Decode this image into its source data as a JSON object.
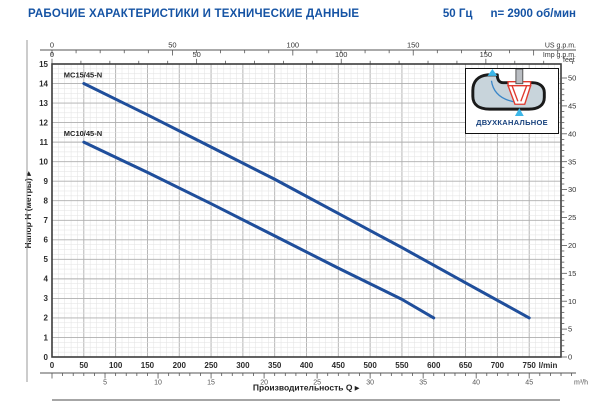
{
  "header": {
    "title": "РАБОЧИЕ ХАРАКТЕРИСТИКИ И ТЕХНИЧЕСКИЕ ДАННЫЕ",
    "frequency": "50 Гц",
    "speed": "n= 2900 об/мин"
  },
  "inset": {
    "label": "ДВУХКАНАЛЬНОЕ"
  },
  "colors": {
    "accent_blue": "#1553a4",
    "curve_blue": "#1f4e9b",
    "grid_minor": "#e2e2e2",
    "grid_major": "#aeaeae",
    "inset_fill": "#c8d4db",
    "impeller_red": "#e03a2f",
    "arrow_cyan": "#3db7e8"
  },
  "chart_data": {
    "type": "line",
    "title": "",
    "xlabel": "Производительность Q  ▸",
    "ylabel": "Напор H (метры)  ▸",
    "x_unit": "l/min",
    "xlim": [
      0,
      800
    ],
    "ylim": [
      0,
      15
    ],
    "x_major_step": 50,
    "x_minor_step": 10,
    "y_major_step": 1,
    "y_minor_step": 0.25,
    "y_tick_labels": [
      0,
      1,
      2,
      3,
      4,
      5,
      6,
      7,
      8,
      9,
      10,
      11,
      12,
      13,
      14,
      15
    ],
    "x_tick_labels": [
      0,
      50,
      100,
      150,
      200,
      250,
      300,
      350,
      400,
      450,
      500,
      550,
      600,
      650,
      700,
      750
    ],
    "grid": true,
    "curve_color": "#1f4e9b",
    "series": [
      {
        "name": "MC15/45-N",
        "points": [
          [
            50,
            14
          ],
          [
            150,
            12.4
          ],
          [
            250,
            10.75
          ],
          [
            350,
            9.1
          ],
          [
            450,
            7.35
          ],
          [
            550,
            5.6
          ],
          [
            650,
            3.8
          ],
          [
            750,
            2.0
          ]
        ]
      },
      {
        "name": "MC10/45-N",
        "points": [
          [
            50,
            11
          ],
          [
            150,
            9.45
          ],
          [
            250,
            7.85
          ],
          [
            350,
            6.2
          ],
          [
            450,
            4.55
          ],
          [
            550,
            2.95
          ],
          [
            600,
            2.0
          ]
        ]
      }
    ],
    "secondary_axes": [
      {
        "label": "US g.p.m.",
        "position": "top",
        "ticks": [
          0,
          50,
          100,
          150
        ],
        "major_step": 50,
        "minor_step": 10,
        "lpm_per_unit": 3.785
      },
      {
        "label": "Imp g.p.m.",
        "position": "top",
        "ticks": [
          0,
          50,
          100,
          150
        ],
        "major_step": 50,
        "minor_step": 10,
        "lpm_per_unit": 4.546
      },
      {
        "label": "m³/h",
        "position": "bottom",
        "ticks": [
          5,
          10,
          15,
          20,
          25,
          30,
          35,
          40,
          45
        ],
        "major_step": 5,
        "minor_step": 1,
        "lpm_per_unit": 16.667
      },
      {
        "label": "feet",
        "position": "right",
        "ticks": [
          0,
          5,
          10,
          15,
          20,
          25,
          30,
          35,
          40,
          45,
          50
        ],
        "major_step": 5,
        "minor_step": 1,
        "max": 50
      }
    ]
  }
}
